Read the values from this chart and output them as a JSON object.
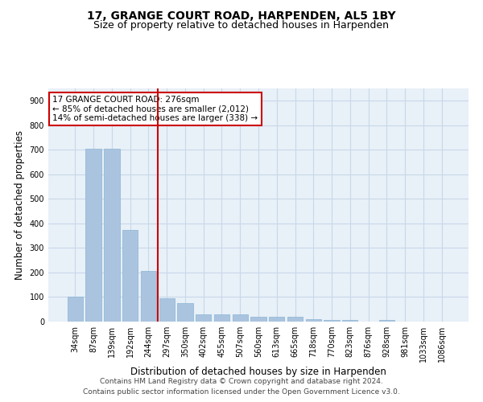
{
  "title": "17, GRANGE COURT ROAD, HARPENDEN, AL5 1BY",
  "subtitle": "Size of property relative to detached houses in Harpenden",
  "xlabel": "Distribution of detached houses by size in Harpenden",
  "ylabel": "Number of detached properties",
  "categories": [
    "34sqm",
    "87sqm",
    "139sqm",
    "192sqm",
    "244sqm",
    "297sqm",
    "350sqm",
    "402sqm",
    "455sqm",
    "507sqm",
    "560sqm",
    "613sqm",
    "665sqm",
    "718sqm",
    "770sqm",
    "823sqm",
    "876sqm",
    "928sqm",
    "981sqm",
    "1033sqm",
    "1086sqm"
  ],
  "values": [
    100,
    703,
    703,
    375,
    205,
    95,
    75,
    30,
    30,
    30,
    20,
    20,
    20,
    10,
    8,
    8,
    0,
    8,
    0,
    0,
    0
  ],
  "bar_color": "#aac4e0",
  "bar_edge_color": "#8ab4d4",
  "marker_index": 5,
  "marker_color": "#cc0000",
  "marker_label": "17 GRANGE COURT ROAD: 276sqm",
  "annotation_line1": "← 85% of detached houses are smaller (2,012)",
  "annotation_line2": "14% of semi-detached houses are larger (338) →",
  "annotation_box_color": "#cc0000",
  "ylim": [
    0,
    950
  ],
  "yticks": [
    0,
    100,
    200,
    300,
    400,
    500,
    600,
    700,
    800,
    900
  ],
  "grid_color": "#c8d8e8",
  "bg_color": "#e8f0f8",
  "footer_line1": "Contains HM Land Registry data © Crown copyright and database right 2024.",
  "footer_line2": "Contains public sector information licensed under the Open Government Licence v3.0.",
  "title_fontsize": 10,
  "subtitle_fontsize": 9,
  "axis_label_fontsize": 8.5,
  "tick_fontsize": 7,
  "footer_fontsize": 6.5,
  "annotation_fontsize": 7.5
}
